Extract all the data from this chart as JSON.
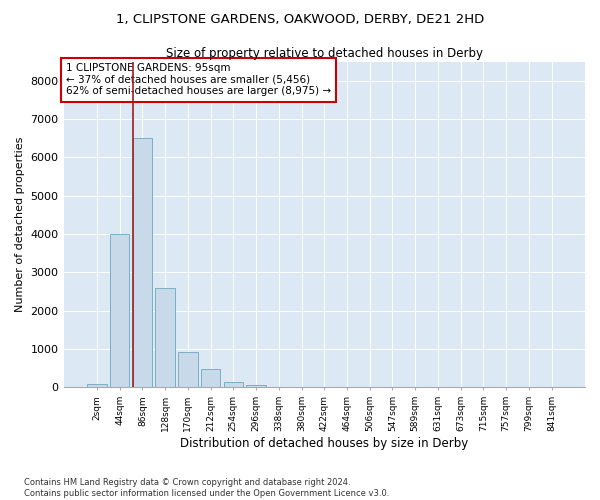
{
  "title_line1": "1, CLIPSTONE GARDENS, OAKWOOD, DERBY, DE21 2HD",
  "title_line2": "Size of property relative to detached houses in Derby",
  "xlabel": "Distribution of detached houses by size in Derby",
  "ylabel": "Number of detached properties",
  "footnote": "Contains HM Land Registry data © Crown copyright and database right 2024.\nContains public sector information licensed under the Open Government Licence v3.0.",
  "bar_color": "#c8daea",
  "bar_edge_color": "#7aafc8",
  "background_color": "#dce9f5",
  "annotation_box_color": "#cc0000",
  "annotation_line1": "1 CLIPSTONE GARDENS: 95sqm",
  "annotation_line2": "← 37% of detached houses are smaller (5,456)",
  "annotation_line3": "62% of semi-detached houses are larger (8,975) →",
  "red_line_x": 2.0,
  "bins": [
    "2sqm",
    "44sqm",
    "86sqm",
    "128sqm",
    "170sqm",
    "212sqm",
    "254sqm",
    "296sqm",
    "338sqm",
    "380sqm",
    "422sqm",
    "464sqm",
    "506sqm",
    "547sqm",
    "589sqm",
    "631sqm",
    "673sqm",
    "715sqm",
    "757sqm",
    "799sqm",
    "841sqm"
  ],
  "counts": [
    100,
    4000,
    6500,
    2600,
    930,
    480,
    150,
    60,
    20,
    5,
    0,
    0,
    0,
    0,
    0,
    0,
    0,
    0,
    0,
    0,
    0
  ],
  "ylim": [
    0,
    8500
  ],
  "yticks": [
    0,
    1000,
    2000,
    3000,
    4000,
    5000,
    6000,
    7000,
    8000
  ]
}
